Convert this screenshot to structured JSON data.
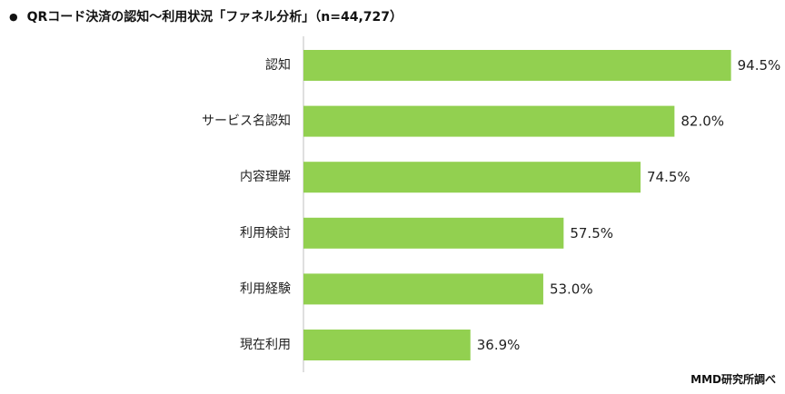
{
  "chart_data": {
    "type": "bar",
    "orientation": "horizontal",
    "title_bullet": "●",
    "title": "QRコード決済の認知～利用状況「ファネル分析」（n=44,727）",
    "categories": [
      "認知",
      "サービス名認知",
      "内容理解",
      "利用検討",
      "利用経験",
      "現在利用"
    ],
    "values": [
      94.5,
      82.0,
      74.5,
      57.5,
      53.0,
      36.9
    ],
    "data_labels": [
      "94.5%",
      "82.0%",
      "74.5%",
      "57.5%",
      "53.0%",
      "36.9%"
    ],
    "xlim": [
      0,
      100
    ],
    "grid": false,
    "legend": "none",
    "bar_color": "#92d050",
    "source": "MMD研究所調べ"
  }
}
